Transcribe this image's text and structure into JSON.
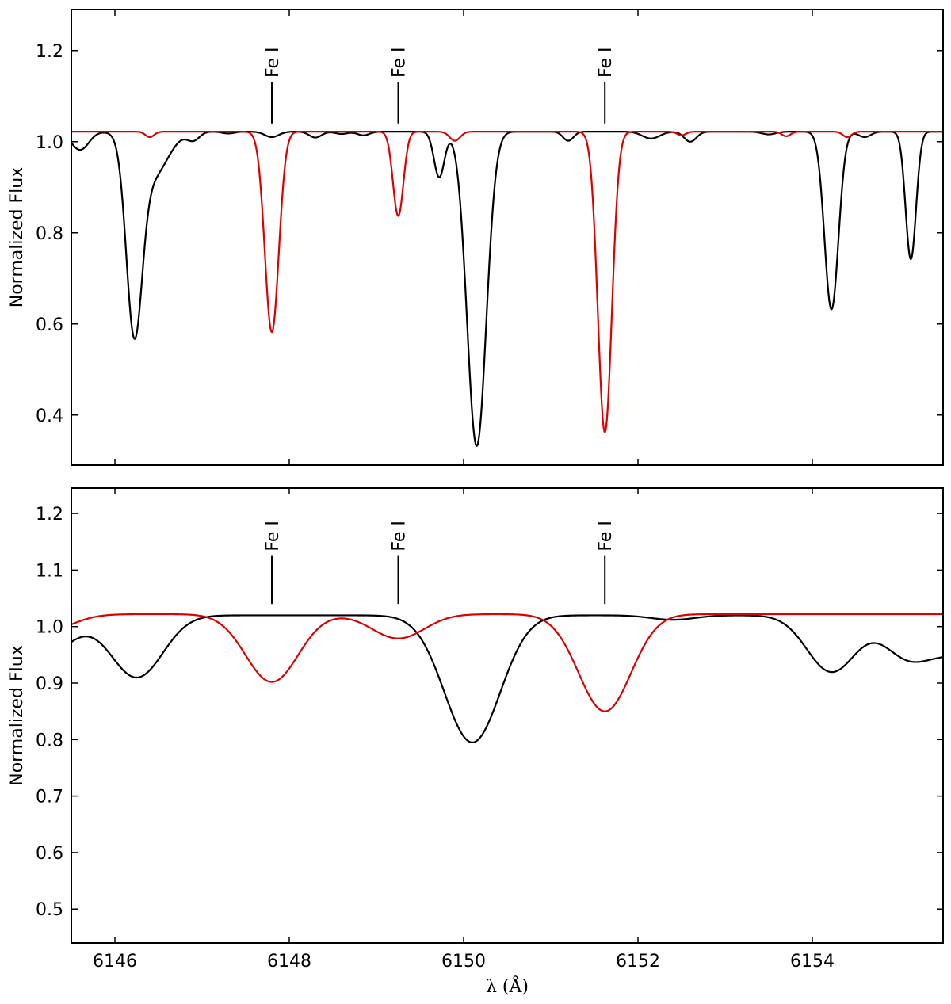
{
  "chart_data": [
    {
      "type": "line",
      "id": "top",
      "title": "",
      "xlabel": "",
      "ylabel": "Normalized Flux",
      "xlim": [
        6145.5,
        6155.5
      ],
      "ylim": [
        0.29,
        1.29
      ],
      "yticks": [
        0.4,
        0.6,
        0.8,
        1.0,
        1.2
      ],
      "ytick_labels": [
        "0.4",
        "0.6",
        "0.8",
        "1.0",
        "1.2"
      ],
      "xticks": [
        6146,
        6148,
        6150,
        6152,
        6154
      ],
      "show_xtick_labels": false,
      "annotations": [
        {
          "label": "Fe I",
          "x": 6147.8
        },
        {
          "label": "Fe I",
          "x": 6149.25
        },
        {
          "label": "Fe I",
          "x": 6151.62
        }
      ],
      "annotation_tick_ymin": 1.04,
      "annotation_tick_ymax": 1.13,
      "series": [
        {
          "color": "#000000",
          "continuum": 1.022,
          "lines": [
            {
              "center": 6145.6,
              "depth": 0.04,
              "width": 0.1
            },
            {
              "center": 6146.22,
              "depth": 0.4,
              "width": 0.09
            },
            {
              "center": 6146.42,
              "depth": 0.1,
              "width": 0.18
            },
            {
              "center": 6146.9,
              "depth": 0.018,
              "width": 0.07
            },
            {
              "center": 6147.3,
              "depth": 0.004,
              "width": 0.07
            },
            {
              "center": 6147.8,
              "depth": 0.012,
              "width": 0.08
            },
            {
              "center": 6148.3,
              "depth": 0.013,
              "width": 0.07
            },
            {
              "center": 6148.6,
              "depth": 0.005,
              "width": 0.07
            },
            {
              "center": 6148.85,
              "depth": 0.008,
              "width": 0.07
            },
            {
              "center": 6149.72,
              "depth": 0.1,
              "width": 0.06
            },
            {
              "center": 6150.15,
              "depth": 0.69,
              "width": 0.11
            },
            {
              "center": 6151.2,
              "depth": 0.02,
              "width": 0.06
            },
            {
              "center": 6152.15,
              "depth": 0.015,
              "width": 0.1
            },
            {
              "center": 6152.6,
              "depth": 0.022,
              "width": 0.07
            },
            {
              "center": 6153.5,
              "depth": 0.006,
              "width": 0.08
            },
            {
              "center": 6154.22,
              "depth": 0.39,
              "width": 0.08
            },
            {
              "center": 6154.6,
              "depth": 0.012,
              "width": 0.07
            },
            {
              "center": 6155.13,
              "depth": 0.28,
              "width": 0.06
            }
          ]
        },
        {
          "color": "#dd0000",
          "continuum": 1.022,
          "lines": [
            {
              "center": 6146.4,
              "depth": 0.012,
              "width": 0.05
            },
            {
              "center": 6147.8,
              "depth": 0.44,
              "width": 0.08
            },
            {
              "center": 6149.25,
              "depth": 0.185,
              "width": 0.06
            },
            {
              "center": 6149.9,
              "depth": 0.02,
              "width": 0.06
            },
            {
              "center": 6151.62,
              "depth": 0.66,
              "width": 0.08
            },
            {
              "center": 6152.5,
              "depth": 0.008,
              "width": 0.05
            },
            {
              "center": 6153.7,
              "depth": 0.01,
              "width": 0.05
            },
            {
              "center": 6154.4,
              "depth": 0.012,
              "width": 0.05
            }
          ]
        }
      ]
    },
    {
      "type": "line",
      "id": "bottom",
      "title": "",
      "xlabel": "λ (Å)",
      "ylabel": "Normalized Flux",
      "xlim": [
        6145.5,
        6155.5
      ],
      "ylim": [
        0.44,
        1.245
      ],
      "yticks": [
        0.5,
        0.6,
        0.7,
        0.8,
        0.9,
        1.0,
        1.1,
        1.2
      ],
      "ytick_labels": [
        "0.5",
        "0.6",
        "0.7",
        "0.8",
        "0.9",
        "1.0",
        "1.1",
        "1.2"
      ],
      "xticks": [
        6146,
        6148,
        6150,
        6152,
        6154
      ],
      "xtick_labels": [
        "6146",
        "6148",
        "6150",
        "6152",
        "6154"
      ],
      "show_xtick_labels": true,
      "annotations": [
        {
          "label": "Fe I",
          "x": 6147.8
        },
        {
          "label": "Fe I",
          "x": 6149.25
        },
        {
          "label": "Fe I",
          "x": 6151.62
        }
      ],
      "annotation_tick_ymin": 1.04,
      "annotation_tick_ymax": 1.125,
      "series": [
        {
          "color": "#000000",
          "continuum": 1.02,
          "lines": [
            {
              "center": 6145.2,
              "depth": 0.07,
              "width": 0.3
            },
            {
              "center": 6146.25,
              "depth": 0.11,
              "width": 0.3
            },
            {
              "center": 6150.1,
              "depth": 0.225,
              "width": 0.32
            },
            {
              "center": 6152.4,
              "depth": 0.008,
              "width": 0.25
            },
            {
              "center": 6154.22,
              "depth": 0.1,
              "width": 0.28
            },
            {
              "center": 6155.1,
              "depth": 0.072,
              "width": 0.28
            },
            {
              "center": 6155.7,
              "depth": 0.06,
              "width": 0.3
            }
          ]
        },
        {
          "color": "#dd0000",
          "continuum": 1.022,
          "lines": [
            {
              "center": 6145.2,
              "depth": 0.03,
              "width": 0.3
            },
            {
              "center": 6147.8,
              "depth": 0.12,
              "width": 0.3
            },
            {
              "center": 6149.25,
              "depth": 0.043,
              "width": 0.3
            },
            {
              "center": 6151.62,
              "depth": 0.172,
              "width": 0.3
            }
          ]
        }
      ]
    }
  ]
}
